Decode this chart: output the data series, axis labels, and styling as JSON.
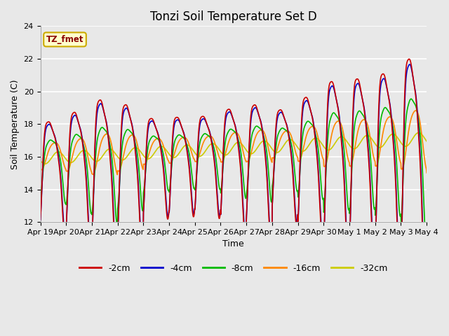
{
  "title": "Tonzi Soil Temperature Set D",
  "xlabel": "Time",
  "ylabel": "Soil Temperature (C)",
  "ylim": [
    12,
    24
  ],
  "x_tick_labels": [
    "Apr 19",
    "Apr 20",
    "Apr 21",
    "Apr 22",
    "Apr 23",
    "Apr 24",
    "Apr 25",
    "Apr 26",
    "Apr 27",
    "Apr 28",
    "Apr 29",
    "Apr 30",
    "May 1",
    "May 2",
    "May 3",
    "May 4"
  ],
  "legend_label": "TZ_fmet",
  "series_labels": [
    "-2cm",
    "-4cm",
    "-8cm",
    "-16cm",
    "-32cm"
  ],
  "series_colors": [
    "#cc0000",
    "#0000cc",
    "#00bb00",
    "#ff8800",
    "#cccc00"
  ],
  "series_linewidths": [
    1.2,
    1.2,
    1.2,
    1.2,
    1.2
  ],
  "plot_bg_color": "#e8e8e8",
  "fig_bg_color": "#e8e8e8",
  "title_fontsize": 12,
  "axis_label_fontsize": 9,
  "tick_fontsize": 8,
  "days": 15,
  "n_points": 1500
}
